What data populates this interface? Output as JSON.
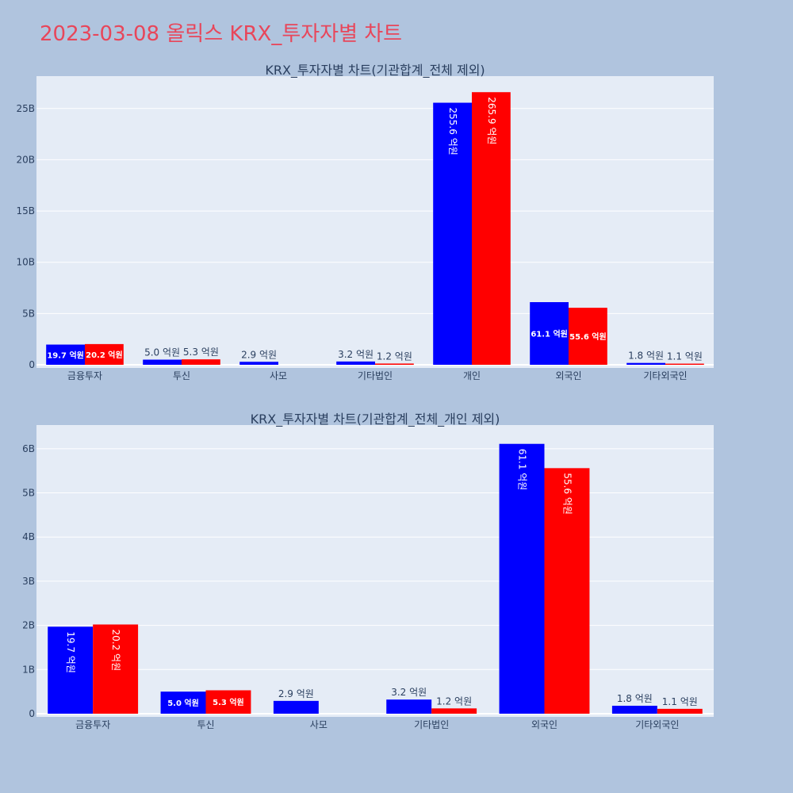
{
  "page": {
    "title": "2023-03-08 올릭스 KRX_투자자별 차트"
  },
  "colors": {
    "background": "#b0c4de",
    "plot_bg": "#e5ecf6",
    "title": "#e8465a",
    "buy": "#0000ff",
    "sell": "#ff0000"
  },
  "chart_data": [
    {
      "type": "bar",
      "title": "KRX_투자자별 차트(기관합계_전체 제외)",
      "categories": [
        "금융투자",
        "투신",
        "사모",
        "기타법인",
        "개인",
        "외국인",
        "기타외국인"
      ],
      "yticks": [
        "0",
        "5B",
        "10B",
        "15B",
        "20B",
        "25B"
      ],
      "ylim": [
        0,
        28
      ],
      "series": [
        {
          "color": "#0000ff",
          "values": [
            1.97,
            0.5,
            0.29,
            0.32,
            25.56,
            6.11,
            0.18
          ],
          "labels": [
            "19.7 억원",
            "5.0 억원",
            "2.9 억원",
            "3.2 억원",
            "255.6 억원",
            "61.1 억원",
            "1.8 억원"
          ]
        },
        {
          "color": "#ff0000",
          "values": [
            2.02,
            0.53,
            null,
            0.12,
            26.59,
            5.56,
            0.11
          ],
          "labels": [
            "20.2 억원",
            "5.3 억원",
            "",
            "1.2 억원",
            "265.9 억원",
            "55.6 억원",
            "1.1 억원"
          ]
        }
      ]
    },
    {
      "type": "bar",
      "title": "KRX_투자자별 차트(기관합계_전체_개인 제외)",
      "categories": [
        "금융투자",
        "투신",
        "사모",
        "기타법인",
        "외국인",
        "기타외국인"
      ],
      "yticks": [
        "0",
        "1B",
        "2B",
        "3B",
        "4B",
        "5B",
        "6B"
      ],
      "ylim": [
        0,
        6.5
      ],
      "series": [
        {
          "color": "#0000ff",
          "values": [
            1.97,
            0.5,
            0.29,
            0.32,
            6.11,
            0.18
          ],
          "labels": [
            "19.7 억원",
            "5.0 억원",
            "2.9 억원",
            "3.2 억원",
            "61.1 억원",
            "1.8 억원"
          ]
        },
        {
          "color": "#ff0000",
          "values": [
            2.02,
            0.53,
            null,
            0.12,
            5.56,
            0.11
          ],
          "labels": [
            "20.2 억원",
            "5.3 억원",
            "",
            "1.2 억원",
            "55.6 억원",
            "1.1 억원"
          ]
        }
      ]
    }
  ]
}
